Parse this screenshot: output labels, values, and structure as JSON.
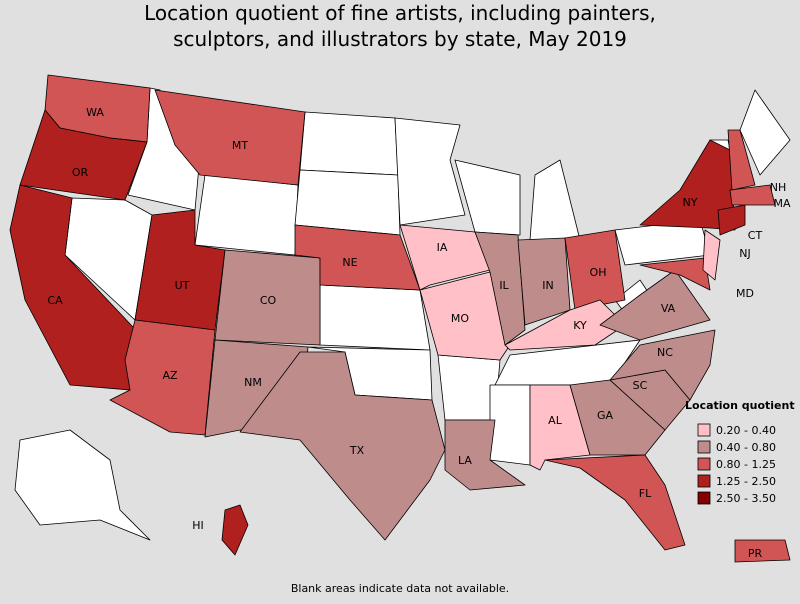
{
  "title": [
    "Location quotient of fine artists, including painters,",
    "sculptors, and illustrators by state, May 2019"
  ],
  "legend": {
    "title": "Location quotient",
    "items": [
      {
        "label": "0.20 - 0.40",
        "color": "#ffc0c8"
      },
      {
        "label": "0.40 - 0.80",
        "color": "#bf8c8c"
      },
      {
        "label": "0.80 - 1.25",
        "color": "#d15555"
      },
      {
        "label": "1.25 - 2.50",
        "color": "#b0201f"
      },
      {
        "label": "2.50 - 3.50",
        "color": "#840000"
      }
    ]
  },
  "states": [
    {
      "label": "WA",
      "color": "#d15555"
    },
    {
      "label": "OR",
      "color": "#b0201f"
    },
    {
      "label": "CA",
      "color": "#b0201f"
    },
    {
      "label": "MT",
      "color": "#d15555"
    },
    {
      "label": "UT",
      "color": "#b0201f"
    },
    {
      "label": "AZ",
      "color": "#d15555"
    },
    {
      "label": "CO",
      "color": "#bf8c8c"
    },
    {
      "label": "NM",
      "color": "#bf8c8c"
    },
    {
      "label": "NE",
      "color": "#d15555"
    },
    {
      "label": "TX",
      "color": "#bf8c8c"
    },
    {
      "label": "IA",
      "color": "#ffc0c8"
    },
    {
      "label": "MO",
      "color": "#ffc0c8"
    },
    {
      "label": "LA",
      "color": "#bf8c8c"
    },
    {
      "label": "IL",
      "color": "#bf8c8c"
    },
    {
      "label": "IN",
      "color": "#bf8c8c"
    },
    {
      "label": "OH",
      "color": "#d15555"
    },
    {
      "label": "KY",
      "color": "#ffc0c8"
    },
    {
      "label": "AL",
      "color": "#ffc0c8"
    },
    {
      "label": "GA",
      "color": "#bf8c8c"
    },
    {
      "label": "FL",
      "color": "#d15555"
    },
    {
      "label": "SC",
      "color": "#bf8c8c"
    },
    {
      "label": "NC",
      "color": "#bf8c8c"
    },
    {
      "label": "VA",
      "color": "#bf8c8c"
    },
    {
      "label": "MD",
      "color": "#d15555"
    },
    {
      "label": "NJ",
      "color": "#ffc0c8"
    },
    {
      "label": "NY",
      "color": "#b0201f"
    },
    {
      "label": "CT",
      "color": "#b0201f"
    },
    {
      "label": "MA",
      "color": "#d15555"
    },
    {
      "label": "NH",
      "color": "#d15555"
    },
    {
      "label": "HI",
      "color": "#b0201f"
    },
    {
      "label": "PR",
      "color": "#d15555"
    }
  ],
  "footnote": "Blank areas indicate data not available."
}
